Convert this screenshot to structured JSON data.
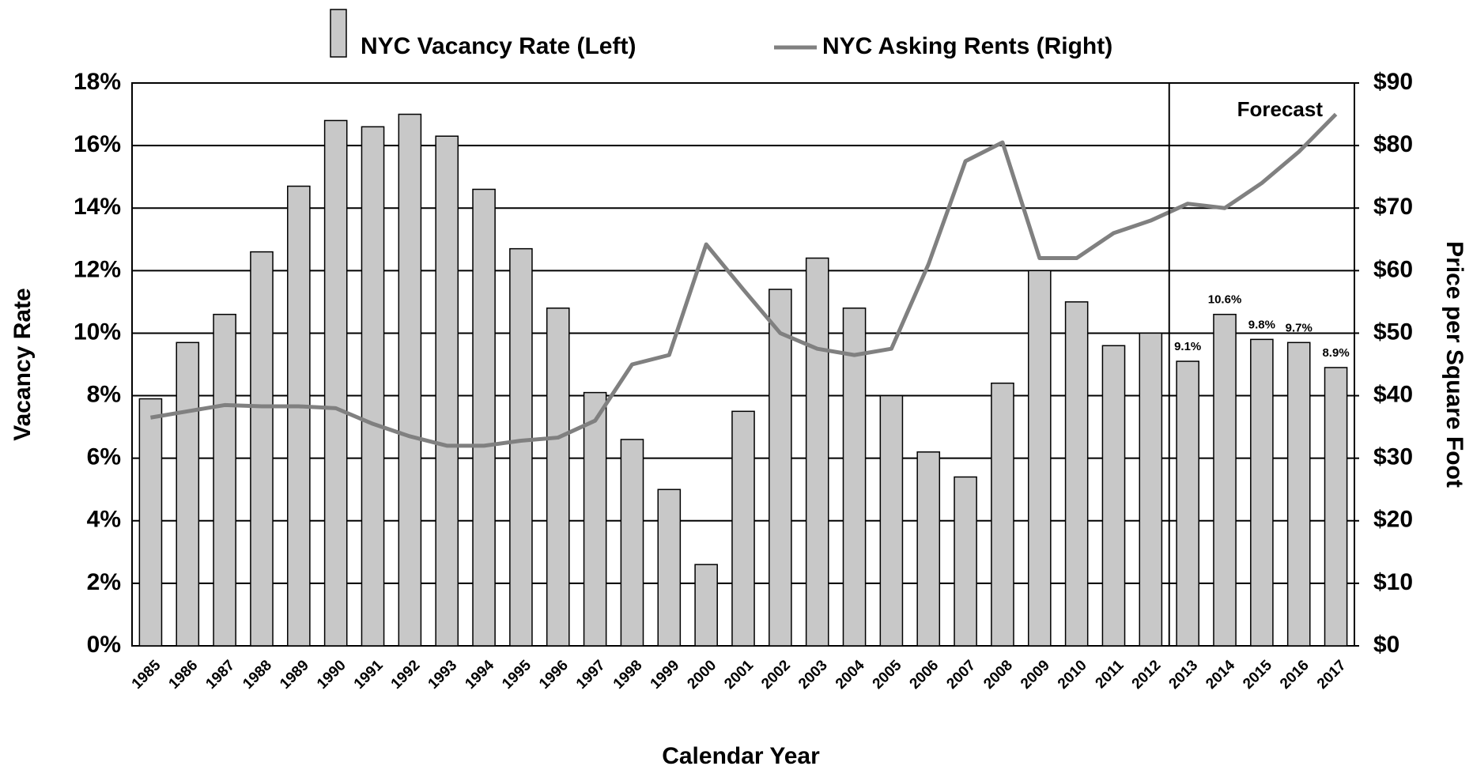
{
  "chart_data": {
    "type": "bar",
    "x_label": "Calendar Year",
    "y_label": "Vacancy Rate",
    "y2_label": "Price per Square Foot",
    "categories": [
      "1985",
      "1986",
      "1987",
      "1988",
      "1989",
      "1990",
      "1991",
      "1992",
      "1993",
      "1994",
      "1995",
      "1996",
      "1997",
      "1998",
      "1999",
      "2000",
      "2001",
      "2002",
      "2003",
      "2004",
      "2005",
      "2006",
      "2007",
      "2008",
      "2009",
      "2010",
      "2011",
      "2012",
      "2013",
      "2014",
      "2015",
      "2016",
      "2017"
    ],
    "series": [
      {
        "name": "NYC Vacancy Rate (Left)",
        "type": "bar",
        "color": "#c8c8c8",
        "values": [
          7.9,
          9.7,
          10.6,
          12.6,
          14.7,
          16.8,
          16.6,
          17.0,
          16.3,
          14.6,
          12.7,
          10.8,
          8.1,
          6.6,
          5.0,
          2.6,
          7.5,
          11.4,
          12.4,
          10.8,
          8.0,
          6.2,
          5.4,
          8.4,
          12.0,
          11.0,
          9.6,
          10.0,
          9.1,
          10.6,
          9.8,
          9.7,
          8.9
        ],
        "value_labels": [
          null,
          null,
          null,
          null,
          null,
          null,
          null,
          null,
          null,
          null,
          null,
          null,
          null,
          null,
          null,
          null,
          null,
          null,
          null,
          null,
          null,
          null,
          null,
          null,
          null,
          null,
          null,
          null,
          "9.1%",
          "10.6%",
          "9.8%",
          "9.7%",
          "8.9%"
        ]
      },
      {
        "name": "NYC Asking Rents (Right)",
        "type": "line",
        "color": "#808080",
        "axis": "y2",
        "values": [
          36.5,
          37.5,
          38.5,
          38.3,
          38.3,
          38,
          35.5,
          33.5,
          32,
          32,
          32.8,
          33.3,
          36,
          45,
          46.5,
          64.2,
          57,
          50,
          47.5,
          46.5,
          47.5,
          61,
          77.5,
          80.5,
          62,
          62,
          66,
          68,
          70.7,
          70,
          74,
          79,
          85
        ]
      }
    ],
    "ylim": [
      0,
      18
    ],
    "yticks": [
      {
        "value": 0,
        "label": "0%"
      },
      {
        "value": 2,
        "label": "2%"
      },
      {
        "value": 4,
        "label": "4%"
      },
      {
        "value": 6,
        "label": "6%"
      },
      {
        "value": 8,
        "label": "8%"
      },
      {
        "value": 10,
        "label": "10%"
      },
      {
        "value": 12,
        "label": "12%"
      },
      {
        "value": 14,
        "label": "14%"
      },
      {
        "value": 16,
        "label": "16%"
      },
      {
        "value": 18,
        "label": "18%"
      }
    ],
    "y2lim": [
      0,
      90
    ],
    "y2ticks": [
      {
        "value": 0,
        "label": "$0"
      },
      {
        "value": 10,
        "label": "$10"
      },
      {
        "value": 20,
        "label": "$20"
      },
      {
        "value": 30,
        "label": "$30"
      },
      {
        "value": 40,
        "label": "$40"
      },
      {
        "value": 50,
        "label": "$50"
      },
      {
        "value": 60,
        "label": "$60"
      },
      {
        "value": 70,
        "label": "$70"
      },
      {
        "value": 80,
        "label": "$80"
      },
      {
        "value": 90,
        "label": "$90"
      }
    ],
    "grid": true,
    "annotations": [
      {
        "text": "Forecast",
        "x": "2013"
      }
    ]
  }
}
